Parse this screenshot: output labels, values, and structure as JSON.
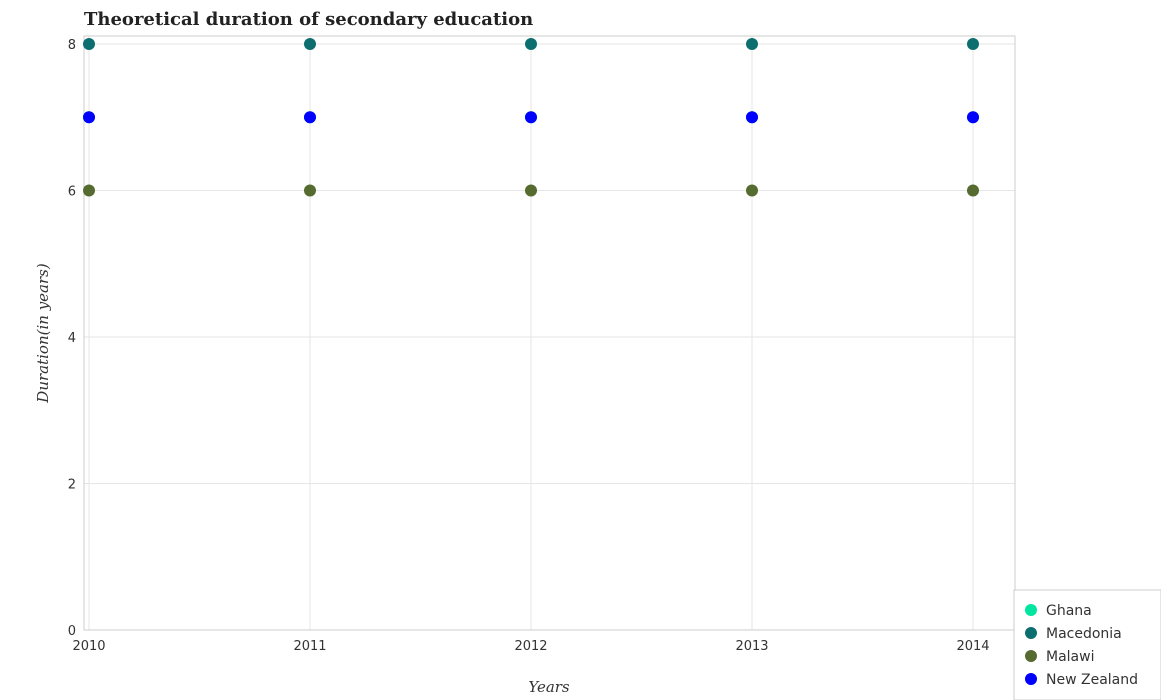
{
  "chart_data": {
    "type": "scatter",
    "title": "Theoretical duration of secondary education",
    "xlabel": "Years",
    "ylabel": "Duration(in years)",
    "x": [
      "2010",
      "2011",
      "2012",
      "2013",
      "2014"
    ],
    "ylim": [
      0,
      8
    ],
    "yticks": [
      "0",
      "2",
      "4",
      "6",
      "8"
    ],
    "grid": true,
    "legend_position": "bottom-right",
    "series": [
      {
        "name": "Ghana",
        "color": "#00e5a0",
        "values": [
          7,
          7,
          7,
          7,
          7
        ]
      },
      {
        "name": "Macedonia",
        "color": "#0d6e70",
        "values": [
          8,
          8,
          8,
          8,
          8
        ]
      },
      {
        "name": "Malawi",
        "color": "#556b2f",
        "values": [
          6,
          6,
          6,
          6,
          6
        ]
      },
      {
        "name": "New Zealand",
        "color": "#0000ff",
        "values": [
          7,
          7,
          7,
          7,
          7
        ]
      }
    ]
  }
}
